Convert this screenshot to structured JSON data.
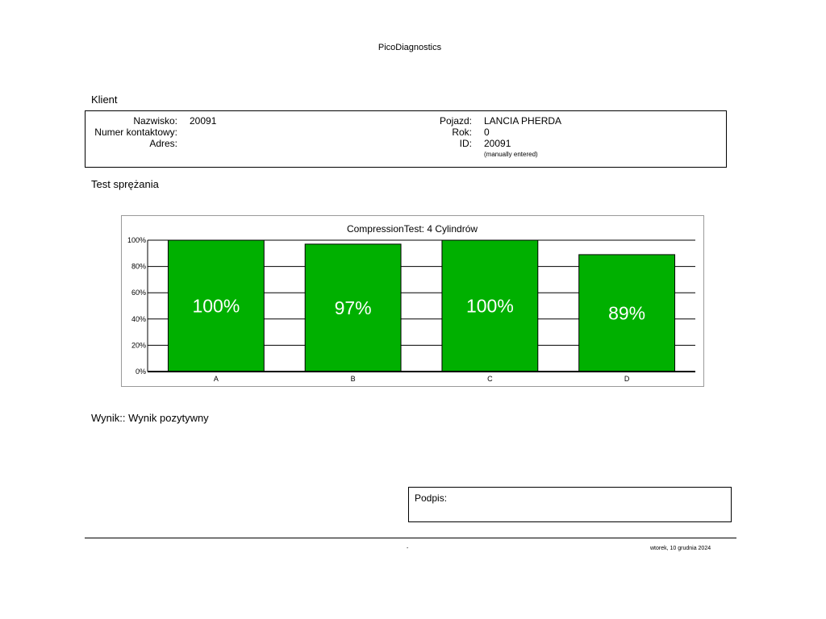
{
  "report": {
    "title": "PicoDiagnostics"
  },
  "client": {
    "heading": "Klient",
    "surname_label": "Nazwisko:",
    "surname_value": "20091",
    "contact_label": "Numer kontaktowy:",
    "contact_value": "",
    "address_label": "Adres:",
    "address_value": "",
    "vehicle_label": "Pojazd:",
    "vehicle_value": "LANCIA PHERDA",
    "year_label": "Rok:",
    "year_value": "0",
    "id_label": "ID:",
    "id_value": "20091",
    "id_note": "(manually entered)"
  },
  "test": {
    "heading": "Test sprężania"
  },
  "chart_data": {
    "type": "bar",
    "title": "CompressionTest: 4 Cylindrów",
    "categories": [
      "A",
      "B",
      "C",
      "D"
    ],
    "values": [
      100,
      97,
      100,
      89
    ],
    "data_labels": [
      "100%",
      "97%",
      "100%",
      "89%"
    ],
    "yticks": [
      0,
      20,
      40,
      60,
      80,
      100
    ],
    "ytick_labels": [
      "0%",
      "20%",
      "40%",
      "60%",
      "80%",
      "100%"
    ],
    "ylim": [
      0,
      100
    ],
    "grid": true,
    "bar_color": "#00b000",
    "xlabel": "",
    "ylabel": ""
  },
  "result": {
    "text": "Wynik:: Wynik pozytywny"
  },
  "signature": {
    "label": "Podpis:"
  },
  "footer": {
    "center": "-",
    "date": "wtorek, 10 grudnia 2024"
  }
}
